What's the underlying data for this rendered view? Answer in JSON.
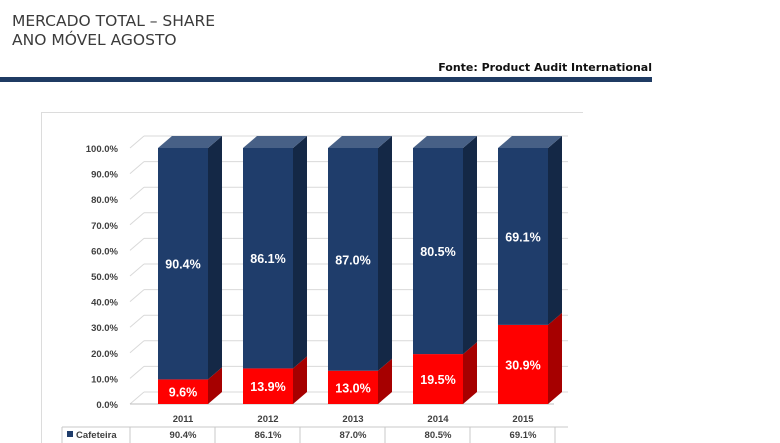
{
  "header": {
    "title_lines": [
      "MERCADO TOTAL – SHARE",
      "ANO MÓVEL AGOSTO"
    ],
    "source": "Fonte: Product Audit International",
    "rule_color": "#1f3b63"
  },
  "chart_data": {
    "type": "bar",
    "stacked": true,
    "percent_stacked": true,
    "style": "3d",
    "title": "",
    "xlabel": "",
    "ylabel": "",
    "ylim": [
      0,
      100
    ],
    "y_ticks": [
      "0.0%",
      "10.0%",
      "20.0%",
      "30.0%",
      "40.0%",
      "50.0%",
      "60.0%",
      "70.0%",
      "80.0%",
      "90.0%",
      "100.0%"
    ],
    "categories": [
      "2011",
      "2012",
      "2013",
      "2014",
      "2015"
    ],
    "series": [
      {
        "name": "",
        "color": "#ff0000",
        "values": [
          9.6,
          13.9,
          13.0,
          19.5,
          30.9
        ],
        "labels": [
          "9.6%",
          "13.9%",
          "13.0%",
          "19.5%",
          "30.9%"
        ]
      },
      {
        "name": "Cafeteira",
        "color": "#1f3d6b",
        "values": [
          90.4,
          86.1,
          87.0,
          80.5,
          69.1
        ],
        "labels": [
          "90.4%",
          "86.1%",
          "87.0%",
          "80.5%",
          "69.1%"
        ]
      }
    ],
    "data_table": {
      "row_label": "Cafeteira",
      "marker": "■",
      "values": [
        "90.4%",
        "86.1%",
        "87.0%",
        "80.5%",
        "69.1%"
      ]
    },
    "grid": true,
    "legend": "data-table"
  }
}
